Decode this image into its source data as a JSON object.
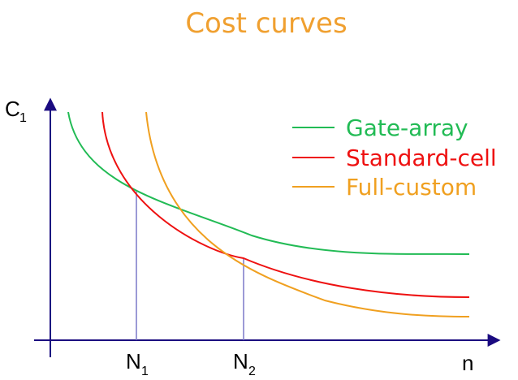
{
  "title": "Cost curves",
  "y_axis": {
    "label": "C",
    "label_sub": "1"
  },
  "x_axis": {
    "label": "n"
  },
  "markers": [
    {
      "label": "N",
      "sub": "1"
    },
    {
      "label": "N",
      "sub": "2"
    }
  ],
  "legend": [
    {
      "label": "Gate-array",
      "color": "#22bb55"
    },
    {
      "label": "Standard-cell",
      "color": "#ee1111"
    },
    {
      "label": "Full-custom",
      "color": "#f0a020"
    }
  ],
  "colors": {
    "title": "#f0a030",
    "axis": "#1a0a80",
    "marker_line": "#7a78c8",
    "label": "#000000"
  },
  "chart_data": {
    "type": "line",
    "series": [
      {
        "name": "Gate-array",
        "curve": "hyperbolic",
        "asymptote": 0.25,
        "scale": 0.11,
        "start": 0.04,
        "end": 0.96
      },
      {
        "name": "Standard-cell",
        "curve": "hyperbolic",
        "asymptote": 0.13,
        "scale": 0.25,
        "start": 0.11,
        "end": 0.96
      },
      {
        "name": "Full-custom",
        "curve": "hyperbolic",
        "asymptote": 0.05,
        "scale": 0.43,
        "start": 0.2,
        "end": 0.96
      }
    ],
    "markers": [
      "N1",
      "N2"
    ]
  }
}
